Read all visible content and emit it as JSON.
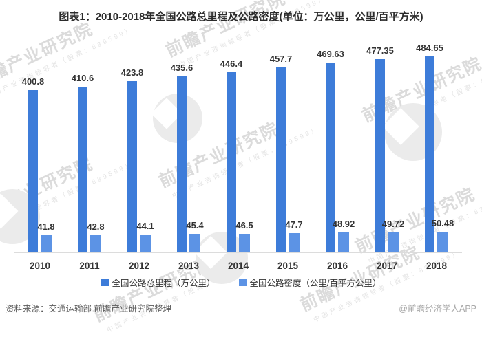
{
  "title": "图表1：2010-2018年全国公路总里程及公路密度(单位：万公里，公里/百平方米)",
  "chart_data": {
    "type": "bar",
    "categories": [
      "2010",
      "2011",
      "2012",
      "2013",
      "2014",
      "2015",
      "2016",
      "2017",
      "2018"
    ],
    "series": [
      {
        "name": "全国公路总里程（万公里）",
        "color": "#3d7cd9",
        "values": [
          400.8,
          410.6,
          423.8,
          435.6,
          446.4,
          457.7,
          469.63,
          477.35,
          484.65
        ]
      },
      {
        "name": "全国公路密度（公里/百平方公里）",
        "color": "#5c93e5",
        "values": [
          41.8,
          42.8,
          44.1,
          45.4,
          46.5,
          47.7,
          48.92,
          49.72,
          50.48
        ]
      }
    ],
    "value_labels": true,
    "grid": false,
    "ylim": [
      0,
      510
    ],
    "legend_position": "bottom",
    "baseline_color": "#dcdcdc"
  },
  "watermark": {
    "main": "前瞻产业研究院",
    "sub": "中国产业咨询领导者（股票：839599）"
  },
  "footer": {
    "source": "资料来源：交通运输部 前瞻产业研究院整理",
    "credit": "@前瞻经济学人APP"
  }
}
